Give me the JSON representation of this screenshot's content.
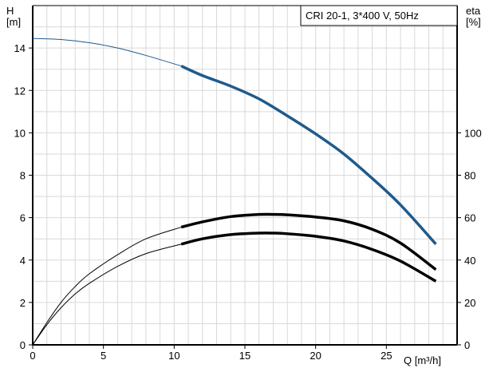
{
  "chart_data": {
    "type": "line",
    "legend_box": "CRI 20-1, 3*400 V, 50Hz",
    "x_axis": {
      "label": "Q [m³/h]",
      "range": [
        0,
        30
      ],
      "ticks": [
        0,
        5,
        10,
        15,
        20,
        25
      ]
    },
    "y_left": {
      "label_line1": "H",
      "label_line2": "[m]",
      "range": [
        0,
        16
      ],
      "ticks": [
        0,
        2,
        4,
        6,
        8,
        10,
        12,
        14
      ]
    },
    "y_right": {
      "label_line1": "eta",
      "label_line2": "[%]",
      "range": [
        0,
        160
      ],
      "ticks": [
        0,
        20,
        40,
        60,
        80,
        100
      ]
    },
    "grid": true,
    "series": [
      {
        "axis": "left",
        "color": "#1f5a8c",
        "points": [
          [
            0,
            14.45
          ],
          [
            2,
            14.4
          ],
          [
            4,
            14.25
          ],
          [
            6,
            14.0
          ],
          [
            8,
            13.65
          ],
          [
            10.5,
            13.15
          ],
          [
            12,
            12.7
          ],
          [
            14,
            12.2
          ],
          [
            16,
            11.6
          ],
          [
            18,
            10.8
          ],
          [
            20,
            9.95
          ],
          [
            22,
            9.0
          ],
          [
            24,
            7.85
          ],
          [
            26,
            6.6
          ],
          [
            28.5,
            4.75
          ]
        ],
        "bold_from": 10.5
      },
      {
        "axis": "right",
        "color": "#000000",
        "points": [
          [
            0,
            0
          ],
          [
            1,
            10.5
          ],
          [
            2,
            20
          ],
          [
            3,
            27.5
          ],
          [
            4,
            33.5
          ],
          [
            6,
            42.5
          ],
          [
            8,
            50
          ],
          [
            10.5,
            55.5
          ],
          [
            12,
            58
          ],
          [
            14,
            60.5
          ],
          [
            16,
            61.5
          ],
          [
            17,
            61.5
          ],
          [
            18,
            61.3
          ],
          [
            20,
            60.3
          ],
          [
            22,
            58.5
          ],
          [
            24,
            54.5
          ],
          [
            26,
            48
          ],
          [
            28.5,
            35.5
          ]
        ],
        "bold_from": 10.5
      },
      {
        "axis": "right",
        "color": "#000000",
        "points": [
          [
            0,
            0
          ],
          [
            1,
            9.5
          ],
          [
            2,
            17.5
          ],
          [
            3,
            24
          ],
          [
            4,
            29
          ],
          [
            6,
            37
          ],
          [
            8,
            43
          ],
          [
            10.5,
            47.5
          ],
          [
            12,
            50
          ],
          [
            14,
            52
          ],
          [
            16,
            52.7
          ],
          [
            17,
            52.7
          ],
          [
            18,
            52.4
          ],
          [
            20,
            51.2
          ],
          [
            22,
            49
          ],
          [
            24,
            45
          ],
          [
            26,
            39.5
          ],
          [
            28.5,
            30
          ]
        ],
        "bold_from": 10.5
      }
    ]
  }
}
